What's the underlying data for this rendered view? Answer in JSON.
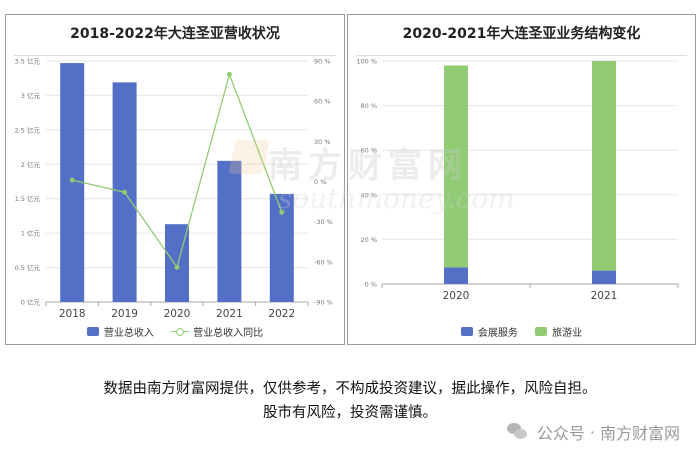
{
  "panels": {
    "left_title": "2018-2022年大连圣亚营收状况",
    "right_title": "2020-2021年大连圣亚业务结构变化"
  },
  "chart_data": [
    {
      "type": "bar",
      "title": "2018-2022年大连圣亚营收状况",
      "categories": [
        "2018",
        "2019",
        "2020",
        "2021",
        "2022"
      ],
      "y_left": {
        "range": [
          0,
          3.5
        ],
        "ticks": [
          "0 亿元",
          "0.5 亿元",
          "1 亿元",
          "1.5 亿元",
          "2 亿元",
          "2.5 亿元",
          "3 亿元",
          "3.5 亿元"
        ]
      },
      "y_right": {
        "range": [
          -90,
          90
        ],
        "ticks": [
          "-90 %",
          "-60 %",
          "-30 %",
          "0 %",
          "30 %",
          "60 %",
          "90 %"
        ]
      },
      "series": [
        {
          "name": "营业总收入",
          "kind": "bar",
          "axis": "left",
          "color": "#5470c6",
          "values": [
            3.47,
            3.19,
            1.13,
            2.05,
            1.57
          ]
        },
        {
          "name": "营业总收入同比",
          "kind": "line",
          "axis": "right",
          "color": "#91cc75",
          "values": [
            1,
            -8,
            -64,
            80,
            -23
          ]
        }
      ],
      "grid": true,
      "legend": "bottom"
    },
    {
      "type": "bar",
      "stacked": true,
      "title": "2020-2021年大连圣亚业务结构变化",
      "categories": [
        "2020",
        "2021"
      ],
      "y": {
        "range": [
          0,
          100
        ],
        "ticks": [
          "0 %",
          "20 %",
          "40 %",
          "60 %",
          "80 %",
          "100 %"
        ]
      },
      "series": [
        {
          "name": "会展服务",
          "color": "#5470c6",
          "values": [
            7.5,
            6
          ]
        },
        {
          "name": "旅游业",
          "color": "#91cc75",
          "values": [
            90.5,
            94
          ]
        }
      ],
      "grid": true,
      "legend": "bottom"
    }
  ],
  "watermark": {
    "cn": "南方财富网",
    "en": "southmoney.com"
  },
  "disclaimer": {
    "line1": "数据由南方财富网提供，仅供参考，不构成投资建议，据此操作，风险自担。",
    "line2": "股市有风险，投资需谨慎。"
  },
  "footer": {
    "account_prefix": "公众号",
    "separator": "·",
    "account_name": "南方财富网"
  }
}
